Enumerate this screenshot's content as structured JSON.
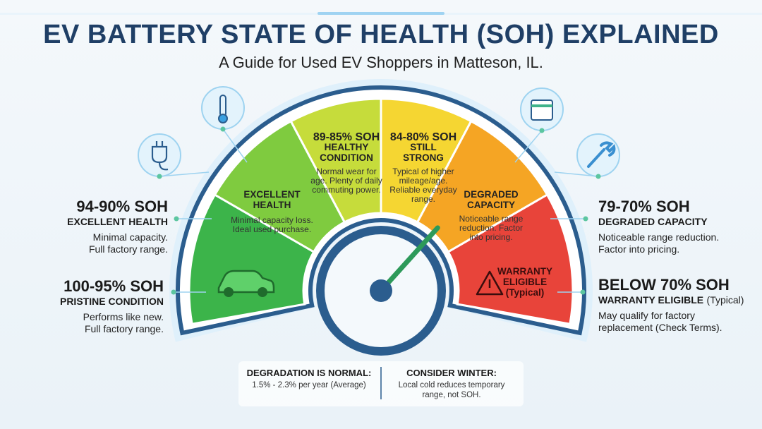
{
  "header": {
    "title": "EV BATTERY STATE OF HEALTH (SOH) EXPLAINED",
    "subtitle": "A Guide for Used EV Shoppers in Matteson, IL."
  },
  "gauge": {
    "excellent": {
      "heading": "EXCELLENT HEALTH",
      "text": "Minimal capacity loss. Ideal used purchase."
    },
    "healthy": {
      "range": "89-85% SOH",
      "heading": "HEALTHY CONDITION",
      "text": "Normal wear for age. Plenty of daily commuting power."
    },
    "strong": {
      "range": "84-80% SOH",
      "heading": "STILL STRONG",
      "text": "Typical of higher mileage/age. Reliable everyday range."
    },
    "degraded": {
      "heading": "DEGRADED CAPACITY",
      "text": "Noticeable range reduction. Factor into pricing."
    },
    "warranty": {
      "heading": "WARRANTY ELIGIBLE (Typical)"
    }
  },
  "left_labels": [
    {
      "range": "94-90% SOH",
      "heading": "EXCELLENT HEALTH",
      "text": "Minimal capacity. Full factory range."
    },
    {
      "range": "100-95% SOH",
      "heading": "PRISTINE CONDITION",
      "text": "Performs like new. Full factory range."
    }
  ],
  "right_labels": [
    {
      "range": "79-70% SOH",
      "heading": "DEGRADED CAPACITY",
      "text": "Noticeable range reduction. Factor into pricing."
    },
    {
      "range": "BELOW 70% SOH",
      "heading": "WARRANTY ELIGIBLE",
      "note": "(Typical)",
      "text": "May qualify for factory replacement (Check Terms)."
    }
  ],
  "footer": [
    {
      "heading": "DEGRADATION IS NORMAL:",
      "text": "1.5% - 2.3% per year (Average)"
    },
    {
      "heading": "CONSIDER WINTER:",
      "text": "Local cold reduces temporary range, not SOH."
    }
  ]
}
